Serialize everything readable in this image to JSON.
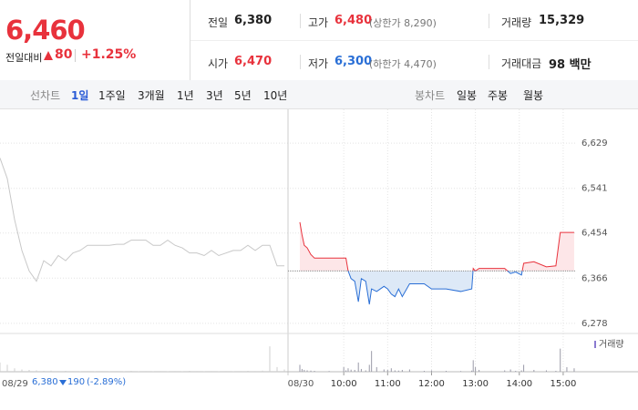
{
  "header": {
    "price": "6,460",
    "change_label": "전일대비",
    "change": "80",
    "change_rate": "+1.25%",
    "stats": [
      {
        "label": "전일",
        "value": "6,380"
      },
      {
        "label": "고가",
        "value": "6,480",
        "note": "(상한가 8,290)"
      },
      {
        "label": "거래량",
        "value": "15,329"
      },
      {
        "label": "시가",
        "value": "6,470"
      },
      {
        "label": "저가",
        "value": "6,300",
        "note": "(하한가 4,470)"
      },
      {
        "label": "거래대금",
        "value": "98 백만"
      }
    ]
  },
  "tabs": {
    "line_label": "선차트",
    "periods": [
      "1일",
      "1주일",
      "3개월",
      "1년",
      "3년",
      "5년",
      "10년"
    ],
    "candle_label": "봉차트",
    "candles": [
      "일봉",
      "주봉",
      "월봉"
    ]
  },
  "info": {
    "price": "6,380",
    "change": "190",
    "change_rate": "(-2.89%)"
  },
  "chart_data": {
    "type": "line",
    "ylim": [
      6260,
      6686
    ],
    "yticks": [
      {
        "value": 6629,
        "label": "6,629"
      },
      {
        "value": 6541,
        "label": "6,541"
      },
      {
        "value": 6454,
        "label": "6,454"
      },
      {
        "value": 6366,
        "label": "6,366"
      },
      {
        "value": 6278,
        "label": "6,278"
      }
    ],
    "baseline": 6380,
    "xlim": [
      "09:00",
      "15:30"
    ],
    "xticks": [
      "10:00",
      "11:00",
      "12:00",
      "13:00",
      "14:00",
      "15:00"
    ],
    "volume_label": "거래량",
    "vlim": [
      0,
      1500
    ],
    "colors": {
      "prev": "#c8c8c8",
      "up": "#e8323c",
      "down": "#2a6fd6",
      "up_fill": "#fde6e8",
      "down_fill": "#dde9f7",
      "volume": "#9a9aa8",
      "volume_prev": "#cfcfcf"
    },
    "sessions": [
      {
        "label": "08/29",
        "values": [
          6600,
          6560,
          6480,
          6420,
          6380,
          6360,
          6400,
          6390,
          6410,
          6400,
          6415,
          6420,
          6430,
          6430,
          6430,
          6430,
          6432,
          6432,
          6440,
          6440,
          6440,
          6430,
          6430,
          6440,
          6430,
          6425,
          6415,
          6415,
          6410,
          6420,
          6410,
          6415,
          6420,
          6420,
          6430,
          6420,
          6430,
          6430,
          6390,
          6390
        ],
        "volume": [
          400,
          300,
          150,
          100,
          80,
          60,
          40,
          50,
          30,
          40,
          30,
          20,
          30,
          20,
          30,
          20,
          30,
          20,
          40,
          20,
          30,
          20,
          30,
          20,
          30,
          20,
          40,
          30,
          20,
          30,
          20,
          30,
          20,
          30,
          40,
          30,
          50,
          1100,
          200,
          100
        ]
      },
      {
        "label": "08/30",
        "x": [
          "09:00",
          "09:03",
          "09:06",
          "09:10",
          "09:15",
          "09:20",
          "09:40",
          "10:00",
          "10:03",
          "10:06",
          "10:10",
          "10:15",
          "10:20",
          "10:24",
          "10:30",
          "10:35",
          "10:38",
          "10:45",
          "10:55",
          "11:00",
          "11:05",
          "11:10",
          "11:15",
          "11:20",
          "11:30",
          "11:50",
          "12:00",
          "12:20",
          "12:40",
          "12:55",
          "12:57",
          "13:00",
          "13:05",
          "13:40",
          "13:48",
          "13:55",
          "14:03",
          "14:06",
          "14:20",
          "14:37",
          "14:50",
          "14:56",
          "15:05",
          "15:15"
        ],
        "values": [
          6475,
          6450,
          6430,
          6425,
          6412,
          6405,
          6405,
          6405,
          6405,
          6380,
          6365,
          6360,
          6320,
          6365,
          6360,
          6315,
          6345,
          6340,
          6350,
          6345,
          6335,
          6330,
          6345,
          6330,
          6355,
          6355,
          6345,
          6345,
          6340,
          6345,
          6385,
          6380,
          6385,
          6385,
          6375,
          6378,
          6372,
          6395,
          6398,
          6388,
          6390,
          6455,
          6455,
          6455
        ],
        "volume": [
          300,
          120,
          80,
          60,
          50,
          40,
          30,
          200,
          60,
          150,
          90,
          80,
          400,
          120,
          60,
          300,
          900,
          200,
          100,
          80,
          150,
          60,
          50,
          80,
          100,
          40,
          60,
          40,
          30,
          50,
          500,
          200,
          80,
          60,
          100,
          40,
          60,
          300,
          80,
          60,
          40,
          1000,
          200,
          150
        ]
      }
    ]
  }
}
